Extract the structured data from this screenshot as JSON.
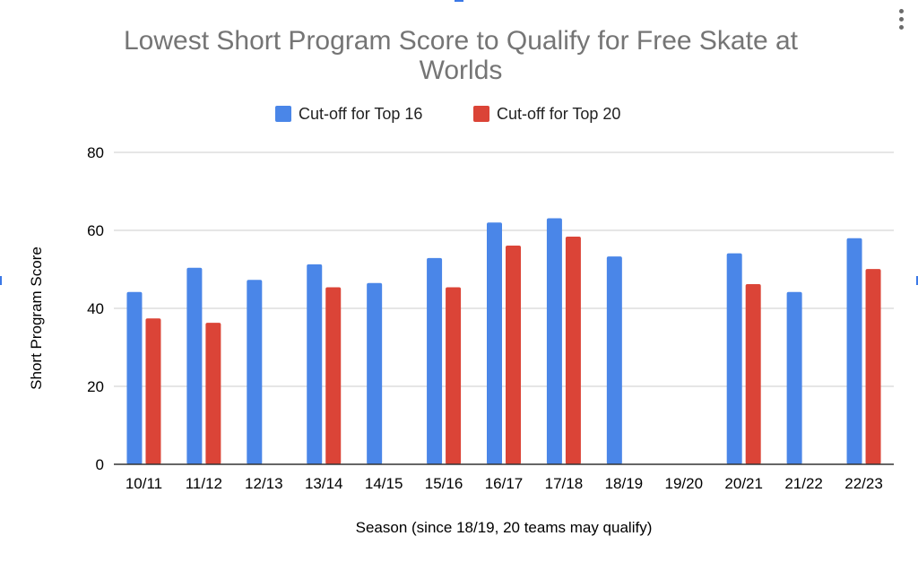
{
  "chart_data": {
    "type": "bar",
    "title": "Lowest Short Program Score to Qualify for Free Skate at Worlds",
    "title_lines": [
      "Lowest Short Program Score to Qualify for Free Skate at",
      "Worlds"
    ],
    "xlabel": "Season (since 18/19, 20 teams may qualify)",
    "ylabel": "Short Program Score",
    "ylim": [
      0,
      80
    ],
    "yticks": [
      "0",
      "20",
      "40",
      "60",
      "80"
    ],
    "grid": true,
    "legend_position": "top",
    "categories": [
      "10/11",
      "11/12",
      "12/13",
      "13/14",
      "14/15",
      "15/16",
      "16/17",
      "17/18",
      "18/19",
      "19/20",
      "20/21",
      "21/22",
      "22/23"
    ],
    "series": [
      {
        "name": "Cut-off for Top 16",
        "color": "#4a86e8",
        "values": [
          44.2,
          50.4,
          47.3,
          51.3,
          46.5,
          52.9,
          62.0,
          63.1,
          53.3,
          null,
          54.1,
          44.2,
          58.0
        ]
      },
      {
        "name": "Cut-off for Top 20",
        "color": "#db4437",
        "values": [
          37.4,
          36.3,
          null,
          45.4,
          null,
          45.4,
          56.1,
          58.4,
          null,
          null,
          46.2,
          null,
          50.1
        ]
      }
    ]
  }
}
